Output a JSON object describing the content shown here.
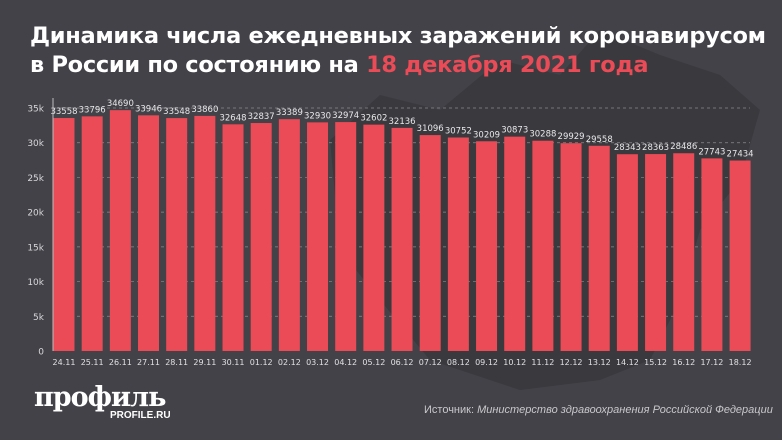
{
  "title": {
    "part1": "Динамика числа ежедневных заражений коронавирусом в России по состоянию на ",
    "highlight": "18 декабря 2021 года"
  },
  "colors": {
    "bar": "#ea4b56",
    "background": "#434248",
    "highlight": "#ea4b56"
  },
  "logo": {
    "name": "профиль",
    "site": "PROFILE.RU"
  },
  "source": {
    "label": "Источник:",
    "text": " Министерство здравоохранения Российской Федерации"
  },
  "chart_data": {
    "type": "bar",
    "categories": [
      "24.11",
      "25.11",
      "26.11",
      "27.11",
      "28.11",
      "29.11",
      "30.11",
      "01.12",
      "02.12",
      "03.12",
      "04.12",
      "05.12",
      "06.12",
      "07.12",
      "08.12",
      "09.12",
      "10.12",
      "11.12",
      "12.12",
      "13.12",
      "14.12",
      "15.12",
      "16.12",
      "17.12",
      "18.12"
    ],
    "values": [
      33558,
      33796,
      34690,
      33946,
      33548,
      33860,
      32648,
      32837,
      33389,
      32930,
      32974,
      32602,
      32136,
      31096,
      30752,
      30209,
      30873,
      30288,
      29929,
      29558,
      28343,
      28363,
      28486,
      27743,
      27434
    ],
    "yticks": [
      0,
      5000,
      10000,
      15000,
      20000,
      25000,
      30000,
      35000
    ],
    "ytick_labels": [
      "0",
      "5k",
      "10k",
      "15k",
      "20k",
      "25k",
      "30k",
      "35k"
    ],
    "ylim": [
      0,
      35000
    ],
    "grid": true,
    "xlabel": "",
    "ylabel": ""
  }
}
